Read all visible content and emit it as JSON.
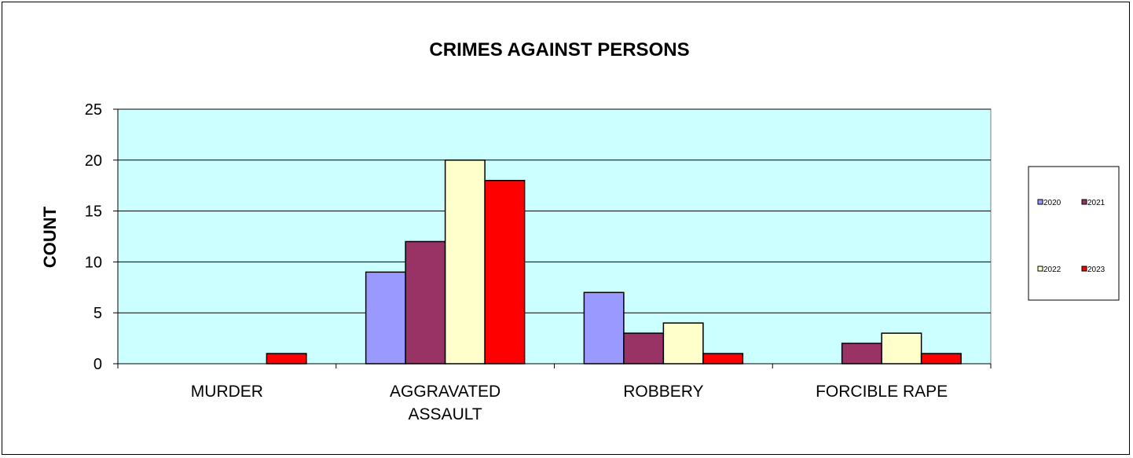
{
  "chart_data": {
    "type": "bar",
    "title": "CRIMES AGAINST PERSONS",
    "xlabel": "",
    "ylabel": "COUNT",
    "ylim": [
      0,
      25
    ],
    "yticks": [
      "0",
      "5",
      "10",
      "15",
      "20",
      "25"
    ],
    "categories": [
      [
        "MURDER"
      ],
      [
        "AGGRAVATED",
        "ASSAULT"
      ],
      [
        "ROBBERY"
      ],
      [
        "FORCIBLE RAPE"
      ]
    ],
    "series": [
      {
        "name": "2020",
        "color": "#9999ff",
        "values": [
          0,
          9,
          7,
          0
        ]
      },
      {
        "name": "2021",
        "color": "#993366",
        "values": [
          0,
          12,
          3,
          2
        ]
      },
      {
        "name": "2022",
        "color": "#ffffcc",
        "values": [
          0,
          20,
          4,
          3
        ]
      },
      {
        "name": "2023",
        "color": "#ff0000",
        "values": [
          1,
          18,
          1,
          1
        ]
      }
    ],
    "plot_background": "#ccffff",
    "grid": true,
    "legend": "right"
  }
}
